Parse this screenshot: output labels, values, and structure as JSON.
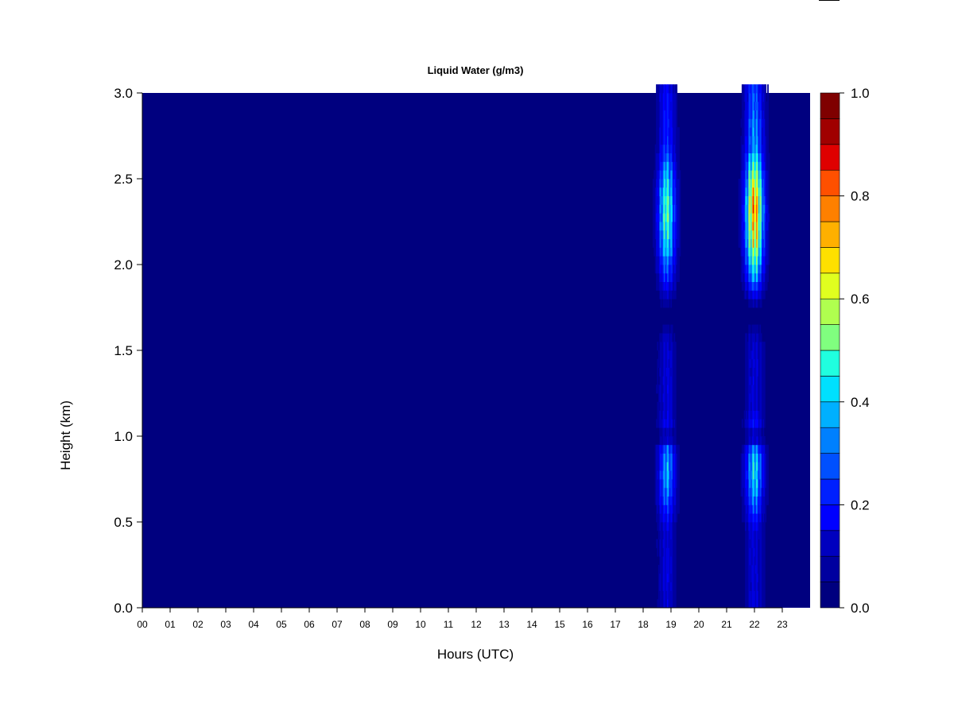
{
  "chart_data": {
    "type": "heatmap",
    "title": "Liquid Water (g/m3)",
    "xlabel": "Hours (UTC)",
    "ylabel": "Height (km)",
    "xlim": [
      0,
      24
    ],
    "ylim": [
      0,
      3
    ],
    "x_tick_labels": [
      "00",
      "01",
      "02",
      "03",
      "04",
      "05",
      "06",
      "07",
      "08",
      "09",
      "10",
      "11",
      "12",
      "13",
      "14",
      "15",
      "16",
      "17",
      "18",
      "19",
      "20",
      "21",
      "22",
      "23"
    ],
    "y_tick_labels": [
      "0.0",
      "0.5",
      "1.0",
      "1.5",
      "2.0",
      "2.5",
      "3.0"
    ],
    "y_ticks": [
      0.0,
      0.5,
      1.0,
      1.5,
      2.0,
      2.5,
      3.0
    ],
    "colorbar": {
      "range": [
        0.0,
        1.0
      ],
      "tick_labels": [
        "0.0",
        "0.2",
        "0.4",
        "0.6",
        "0.8",
        "1.0"
      ],
      "ticks": [
        0.0,
        0.2,
        0.4,
        0.6,
        0.8,
        1.0
      ],
      "levels": 20,
      "colors": [
        "#00007f",
        "#00009f",
        "#0000bf",
        "#0000df",
        "#0000ff",
        "#0020ff",
        "#0050ff",
        "#0080ff",
        "#00b0ff",
        "#00e0ff",
        "#20ffdf",
        "#50ffaf",
        "#80ff7f",
        "#b0ff4f",
        "#e0ff1f",
        "#ffe000",
        "#ffb000",
        "#ff8000",
        "#ff5000",
        "#ff2000",
        "#df0000",
        "#a00000",
        "#7f0000"
      ]
    },
    "background_value": 0.0,
    "rain_events": [
      {
        "start_hour": 18.1,
        "end_hour": 19.5,
        "peak_hour": 18.85,
        "upper_peak_value": 0.62,
        "upper_peak_height_km": 2.3,
        "lower_peak_value": 0.45,
        "lower_peak_height_km": 0.8
      },
      {
        "start_hour": 21.4,
        "end_hour": 22.9,
        "peak_hour": 22.0,
        "upper_peak_value": 0.9,
        "upper_peak_height_km": 2.3,
        "lower_peak_value": 0.5,
        "lower_peak_height_km": 0.8
      }
    ]
  }
}
